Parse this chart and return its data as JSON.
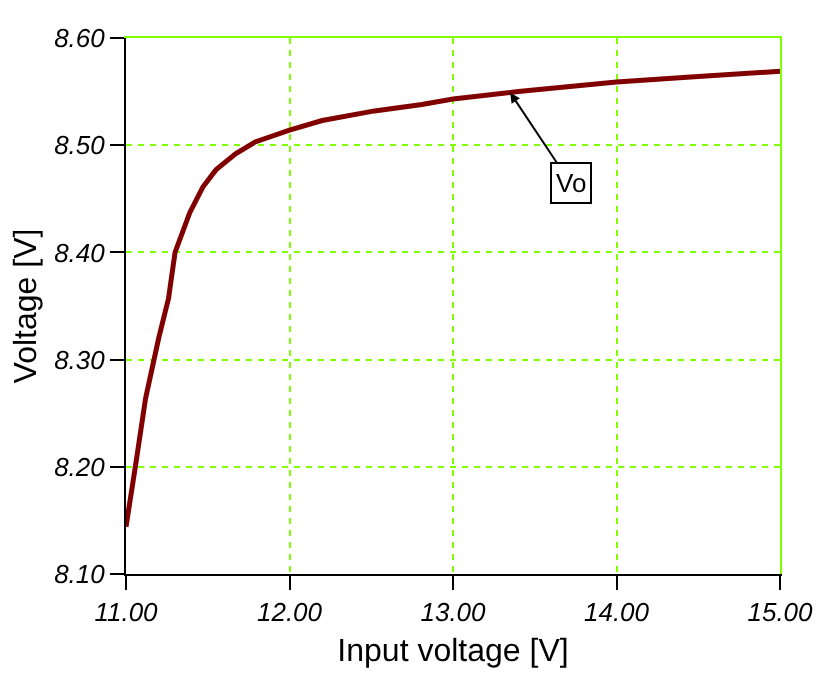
{
  "chart_data": {
    "type": "line",
    "xlabel": "Input voltage [V]",
    "ylabel": "Voltage [V]",
    "x": [
      11.0,
      11.06,
      11.12,
      11.2,
      11.26,
      11.3,
      11.39,
      11.47,
      11.55,
      11.67,
      11.79,
      12.0,
      12.2,
      12.52,
      12.81,
      13.0,
      13.4,
      14.0,
      14.5,
      15.0
    ],
    "series": [
      {
        "color": "#800000",
        "values": [
          8.144,
          8.203,
          8.264,
          8.32,
          8.357,
          8.4,
          8.437,
          8.461,
          8.477,
          8.492,
          8.503,
          8.514,
          8.523,
          8.532,
          8.538,
          8.543,
          8.55,
          8.559,
          8.564,
          8.569
        ]
      }
    ],
    "annotations": [
      {
        "text": "Vo",
        "x": 13.35,
        "y": 8.549
      }
    ],
    "xlim": [
      11.0,
      15.0
    ],
    "ylim": [
      8.1,
      8.6
    ],
    "xticks": [
      {
        "value": 11,
        "label": "11.00"
      },
      {
        "value": 12,
        "label": "12.00"
      },
      {
        "value": 13,
        "label": "13.00"
      },
      {
        "value": 14,
        "label": "14.00"
      },
      {
        "value": 15,
        "label": "15.00"
      }
    ],
    "yticks": [
      {
        "value": 8.1,
        "label": "8.10"
      },
      {
        "value": 8.2,
        "label": "8.20"
      },
      {
        "value": 8.3,
        "label": "8.30"
      },
      {
        "value": 8.4,
        "label": "8.40"
      },
      {
        "value": 8.5,
        "label": "8.50"
      },
      {
        "value": 8.6,
        "label": "8.60"
      }
    ],
    "grid": true,
    "marker": "none",
    "line_style": "solid"
  }
}
